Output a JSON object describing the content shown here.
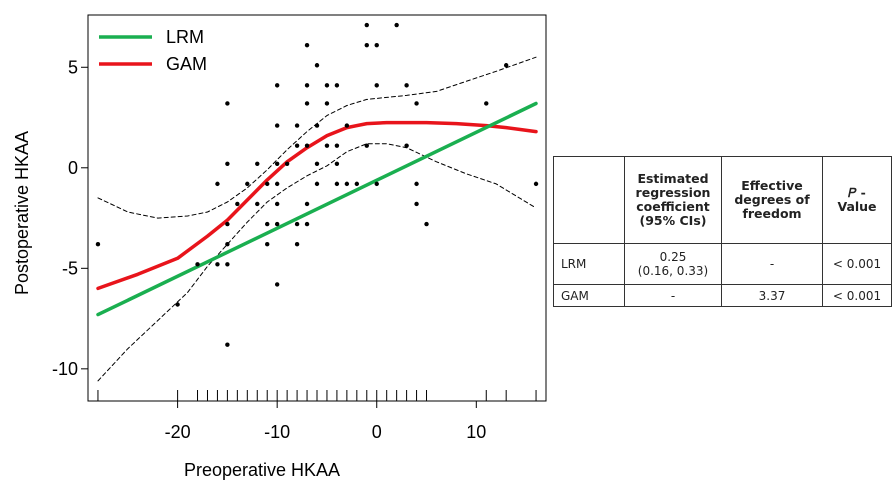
{
  "chart_data": {
    "type": "scatter",
    "xlabel": "Preoperative HKAA",
    "ylabel": "Postoperative HKAA",
    "xlim": [
      -29,
      17
    ],
    "ylim": [
      -11.6,
      7.6
    ],
    "x_ticks": [
      -20,
      -10,
      0,
      10
    ],
    "y_ticks": [
      -10,
      -5,
      0,
      5
    ],
    "grid": false,
    "legend": {
      "position": "top-left",
      "entries": [
        "LRM",
        "GAM"
      ]
    },
    "points": [
      [
        -28,
        -3.8
      ],
      [
        -20,
        -6.8
      ],
      [
        -18,
        -4.8
      ],
      [
        -16,
        -0.8
      ],
      [
        -16,
        -4.8
      ],
      [
        -15,
        3.2
      ],
      [
        -15,
        0.2
      ],
      [
        -15,
        -2.8
      ],
      [
        -15,
        -3.8
      ],
      [
        -15,
        -4.8
      ],
      [
        -15,
        -8.8
      ],
      [
        -14,
        -1.8
      ],
      [
        -13,
        -0.8
      ],
      [
        -12,
        0.2
      ],
      [
        -12,
        -1.8
      ],
      [
        -11,
        -0.8
      ],
      [
        -11,
        -2.8
      ],
      [
        -11,
        -3.8
      ],
      [
        -10,
        4.1
      ],
      [
        -10,
        2.1
      ],
      [
        -10,
        0.2
      ],
      [
        -10,
        -0.8
      ],
      [
        -10,
        -1.8
      ],
      [
        -10,
        -2.8
      ],
      [
        -10,
        -5.8
      ],
      [
        -9,
        0.2
      ],
      [
        -8,
        2.1
      ],
      [
        -8,
        1.1
      ],
      [
        -8,
        -2.8
      ],
      [
        -8,
        -3.8
      ],
      [
        -7,
        4.1
      ],
      [
        -7,
        3.2
      ],
      [
        -7,
        1.1
      ],
      [
        -7,
        -1.8
      ],
      [
        -7,
        -2.8
      ],
      [
        -7,
        6.1
      ],
      [
        -6,
        5.1
      ],
      [
        -6,
        2.1
      ],
      [
        -6,
        0.2
      ],
      [
        -6,
        -0.8
      ],
      [
        -5,
        4.1
      ],
      [
        -5,
        3.2
      ],
      [
        -5,
        1.1
      ],
      [
        -4,
        4.1
      ],
      [
        -4,
        1.1
      ],
      [
        -4,
        0.2
      ],
      [
        -4,
        -0.8
      ],
      [
        -3,
        2.1
      ],
      [
        -3,
        -0.8
      ],
      [
        -2,
        -0.8
      ],
      [
        -1,
        7.1
      ],
      [
        -1,
        6.1
      ],
      [
        -1,
        1.1
      ],
      [
        0,
        6.1
      ],
      [
        0,
        4.1
      ],
      [
        0,
        -0.8
      ],
      [
        2,
        7.1
      ],
      [
        3,
        4.1
      ],
      [
        3,
        1.1
      ],
      [
        4,
        -0.8
      ],
      [
        4,
        -1.8
      ],
      [
        4,
        3.2
      ],
      [
        5,
        -2.8
      ],
      [
        11,
        3.2
      ],
      [
        13,
        5.1
      ],
      [
        16,
        -0.8
      ]
    ],
    "rug_x": [
      -28,
      -20,
      -18,
      -17,
      -16,
      -15,
      -14,
      -13,
      -12,
      -11,
      -10,
      -9,
      -8,
      -7,
      -6,
      -5,
      -4,
      -3,
      -2,
      -1,
      0,
      1,
      2,
      3,
      4,
      5,
      11,
      13,
      16
    ],
    "series": [
      {
        "name": "LRM",
        "color": "#1aaf50",
        "style": "solid",
        "x": [
          -28,
          16
        ],
        "y": [
          -7.3,
          3.2
        ]
      },
      {
        "name": "GAM",
        "color": "#e8141b",
        "style": "solid",
        "x": [
          -28,
          -24,
          -20,
          -17,
          -15,
          -13,
          -11,
          -9,
          -7,
          -5,
          -3,
          -1,
          1,
          3,
          5,
          8,
          11,
          13,
          16
        ],
        "y": [
          -6.0,
          -5.3,
          -4.5,
          -3.4,
          -2.6,
          -1.6,
          -0.6,
          0.3,
          1.0,
          1.6,
          2.0,
          2.2,
          2.25,
          2.25,
          2.25,
          2.2,
          2.1,
          2.0,
          1.8
        ]
      },
      {
        "color": "#000000",
        "style": "dashed",
        "x": [
          -28,
          -25,
          -22,
          -19,
          -17,
          -15,
          -13,
          -11,
          -9,
          -7,
          -5,
          -3,
          -1,
          1,
          3,
          6,
          9,
          12,
          16
        ],
        "y": [
          -1.5,
          -2.2,
          -2.5,
          -2.4,
          -2.2,
          -1.7,
          -1.0,
          -0.1,
          0.9,
          1.8,
          2.6,
          3.1,
          3.4,
          3.5,
          3.6,
          3.8,
          4.3,
          4.8,
          5.5
        ]
      },
      {
        "color": "#000000",
        "style": "dashed",
        "x": [
          -28,
          -25,
          -22,
          -19,
          -17,
          -15,
          -13,
          -11,
          -9,
          -7,
          -5,
          -3,
          -1,
          1,
          3,
          6,
          9,
          12,
          16
        ],
        "y": [
          -10.6,
          -9.0,
          -7.6,
          -6.2,
          -4.9,
          -3.8,
          -2.7,
          -1.7,
          -1.0,
          -0.4,
          0.1,
          0.8,
          1.2,
          1.2,
          1.0,
          0.3,
          -0.3,
          -0.8,
          -2.0
        ]
      }
    ]
  },
  "table": {
    "headers": [
      "",
      "Estimated regression coefficient (95% CIs)",
      "Effective degrees of freedom",
      "𝑃 - Value"
    ],
    "header_lines": {
      "estimated": [
        "Estimated",
        "regression",
        "coefficient",
        "(95% CIs)"
      ],
      "effective": [
        "Effective",
        "degrees of",
        "freedom"
      ],
      "pvalue": [
        "𝑃 -",
        "Value"
      ]
    },
    "rows": [
      {
        "label": "LRM",
        "estimate": "0.25",
        "ci": "(0.16, 0.33)",
        "df": "-",
        "p": "< 0.001"
      },
      {
        "label": "GAM",
        "estimate": "-",
        "ci": "",
        "df": "3.37",
        "p": "< 0.001"
      }
    ]
  }
}
